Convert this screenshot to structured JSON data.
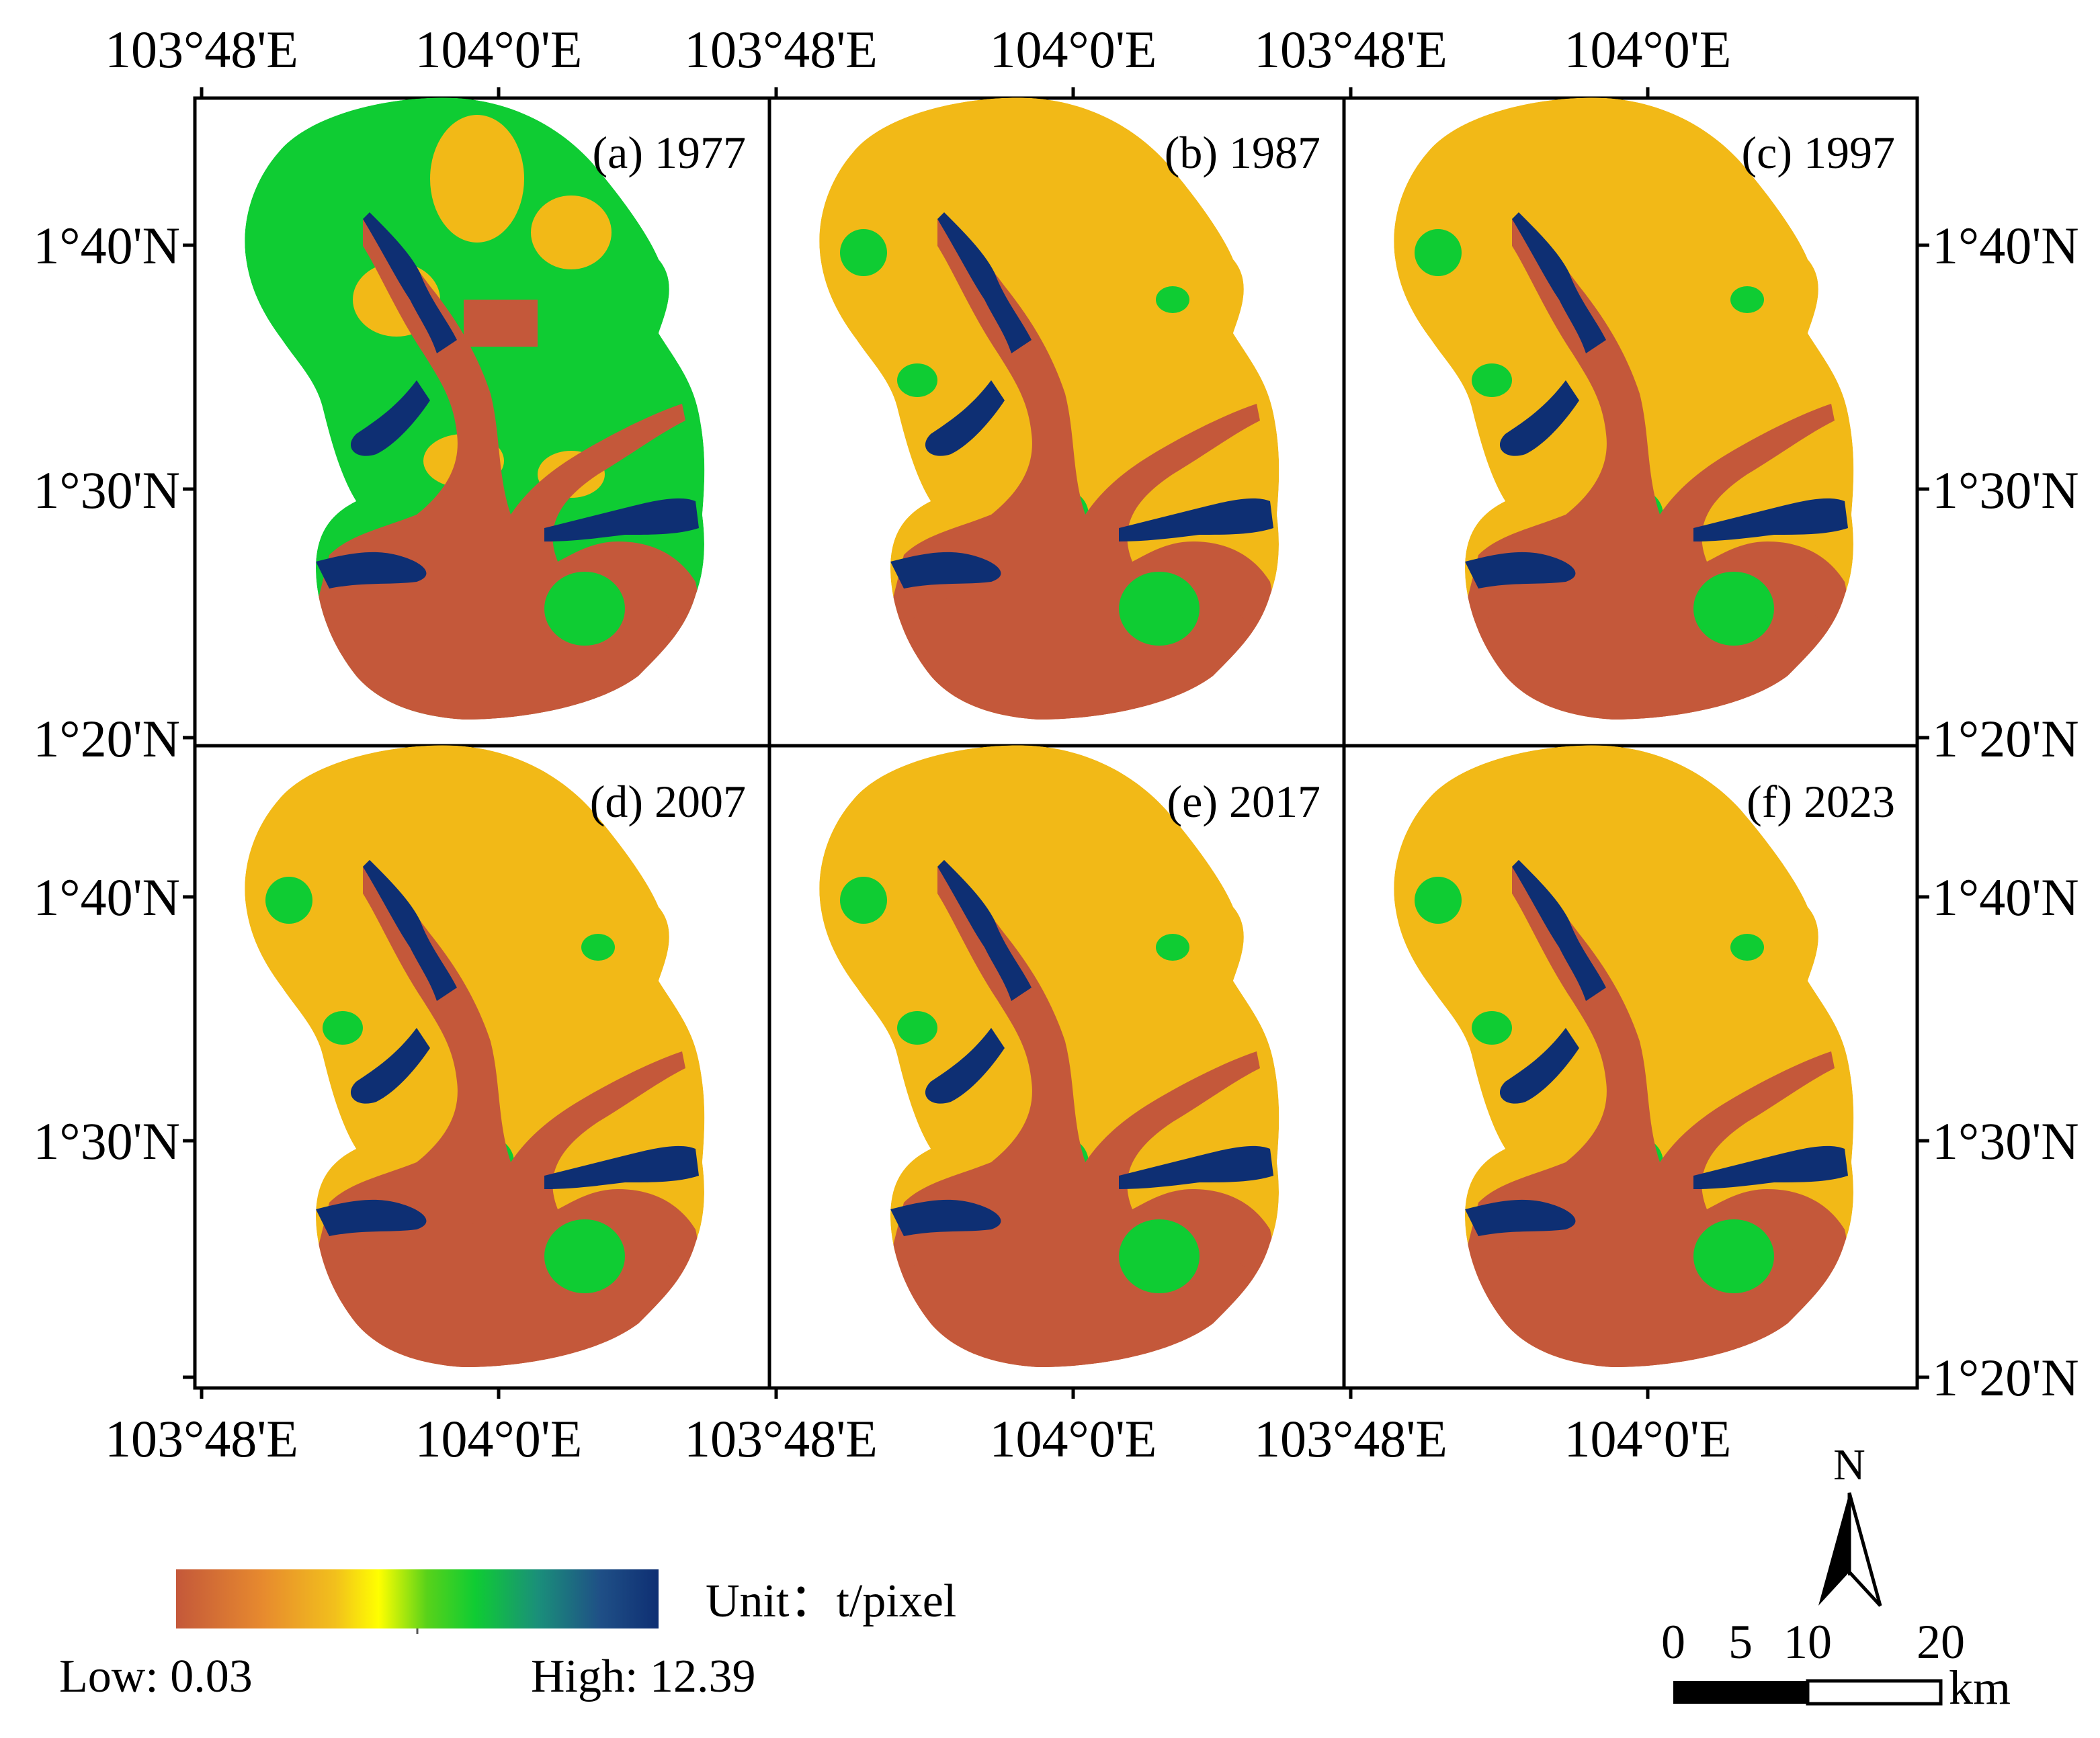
{
  "figure": {
    "top_lon_labels": [
      "103°48'E",
      "104°0'E",
      "103°48'E",
      "104°0'E",
      "103°48'E",
      "104°0'E"
    ],
    "bottom_lon_labels": [
      "103°48'E",
      "104°0'E",
      "103°48'E",
      "104°0'E",
      "103°48'E",
      "104°0'E"
    ],
    "left_lat_labels_top_row": [
      "1°40'N",
      "1°30'N",
      "1°20'N"
    ],
    "left_lat_labels_bottom_row": [
      "1°40'N",
      "1°30'N"
    ],
    "right_lat_labels_top_row": [
      "1°40'N",
      "1°30'N",
      "1°20'N"
    ],
    "right_lat_labels_bottom_row": [
      "1°40'N",
      "1°30'N",
      "1°20'N"
    ]
  },
  "panels": [
    {
      "label": "(a) 1977",
      "year": 1977,
      "dominant_class": "green"
    },
    {
      "label": "(b) 1987",
      "year": 1987,
      "dominant_class": "orange"
    },
    {
      "label": "(c) 1997",
      "year": 1997,
      "dominant_class": "orange"
    },
    {
      "label": "(d) 2007",
      "year": 2007,
      "dominant_class": "orange"
    },
    {
      "label": "(e) 2017",
      "year": 2017,
      "dominant_class": "orange"
    },
    {
      "label": "(f) 2023",
      "year": 2023,
      "dominant_class": "orange"
    }
  ],
  "legend": {
    "unit": "Unit：t/pixel",
    "low": "Low: 0.03",
    "high": "High: 12.39",
    "gradient": [
      "#c4583a",
      "#e78a2e",
      "#f2c01c",
      "#ffff00",
      "#58d21a",
      "#0fcc33",
      "#1a8f7a",
      "#1f4f86",
      "#0e2f73"
    ]
  },
  "north_arrow": {
    "label": "N"
  },
  "scale_bar": {
    "ticks": [
      "0",
      "5",
      "10",
      "20"
    ],
    "unit": "km"
  },
  "colors": {
    "water": "#c4583a",
    "mangrove": "#0e2f73",
    "vegetation": "#0fcc33",
    "urban": "#f2b917",
    "frame": "#000000"
  }
}
